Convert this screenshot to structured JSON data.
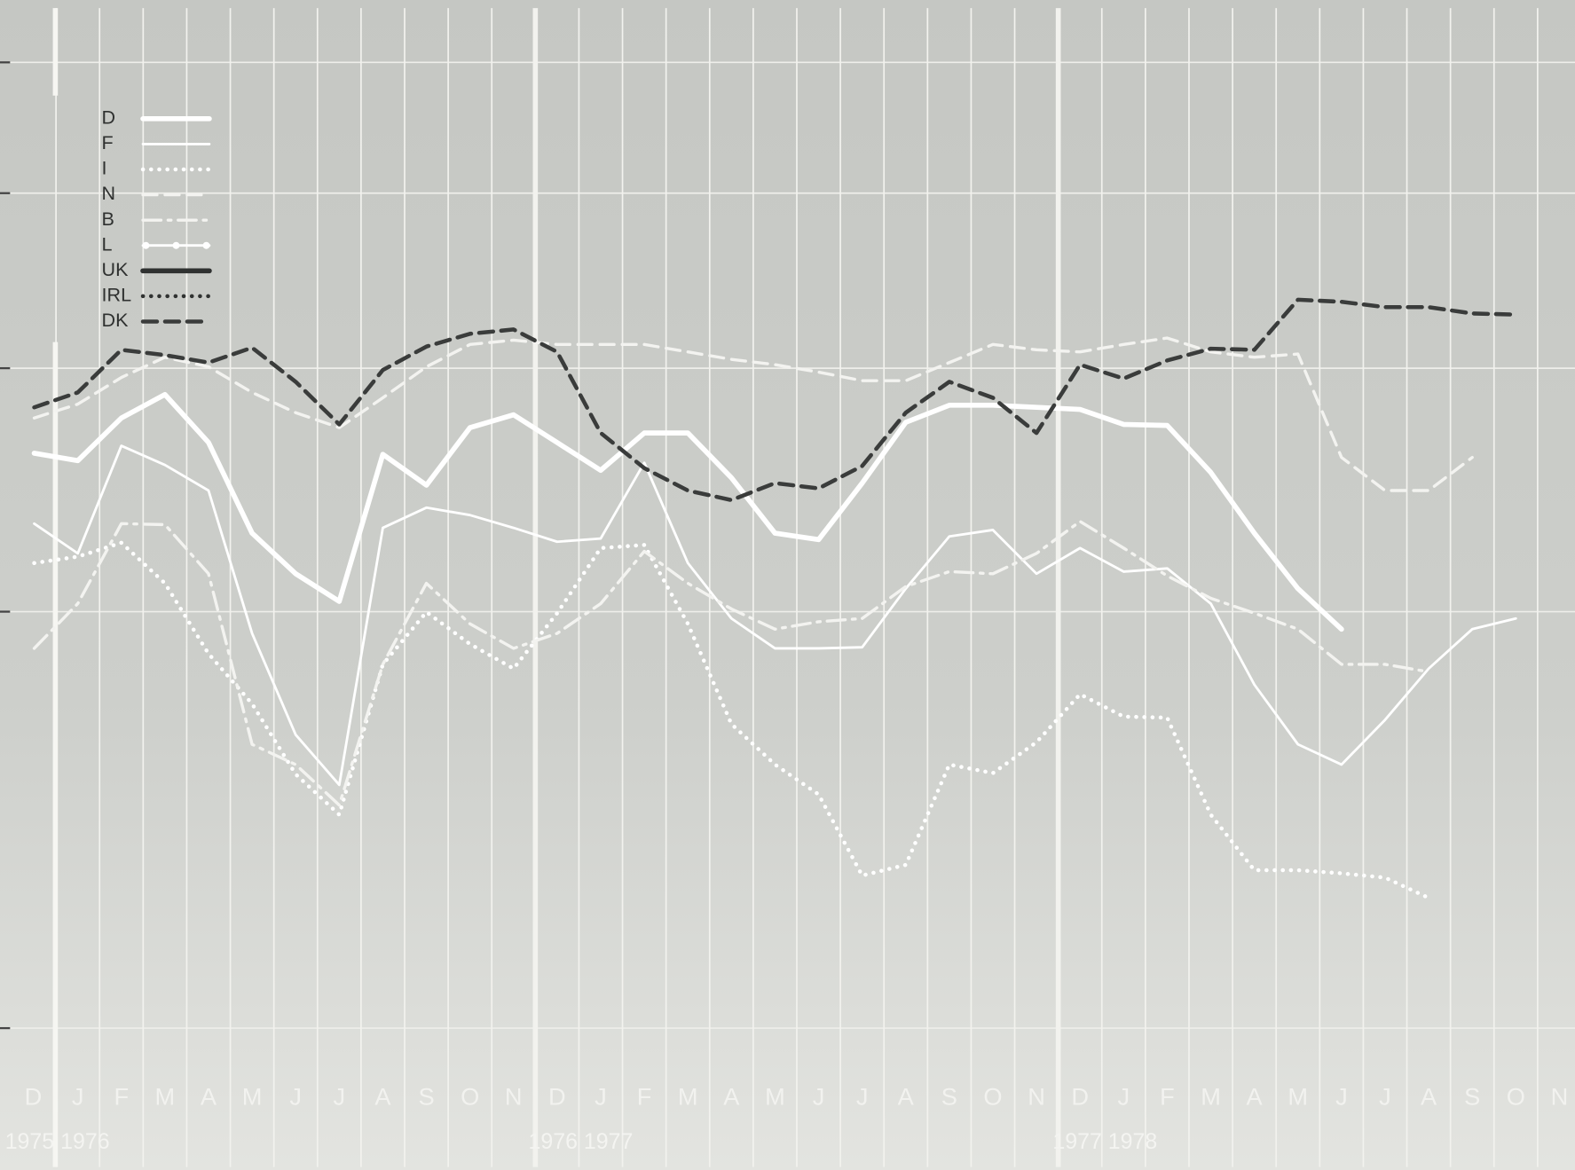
{
  "chart_data": {
    "type": "line",
    "categories": [
      "D",
      "J",
      "F",
      "M",
      "A",
      "M",
      "J",
      "J",
      "A",
      "S",
      "O",
      "N",
      "D",
      "J",
      "F",
      "M",
      "A",
      "M",
      "J",
      "J",
      "A",
      "S",
      "O",
      "N",
      "D",
      "J",
      "F",
      "M",
      "A",
      "M",
      "J",
      "J",
      "A",
      "S",
      "O",
      "N"
    ],
    "year_labels": [
      "1975 1976",
      "1976 1977",
      "1977 1978"
    ],
    "ylim": [
      0,
      100
    ],
    "series": [
      {
        "name": "D",
        "color": "#ffffff",
        "style": "solid",
        "width": 5,
        "values": [
          57.5,
          56.8,
          60.8,
          63.0,
          58.5,
          50.0,
          46.2,
          43.6,
          57.4,
          54.5,
          59.9,
          61.1,
          58.5,
          55.9,
          59.4,
          59.4,
          55.2,
          50.0,
          49.4,
          54.7,
          60.4,
          62.0,
          62.0,
          61.8,
          61.6,
          60.2,
          60.1,
          55.7,
          50.0,
          44.8,
          41.0,
          null,
          null,
          null,
          null,
          null
        ]
      },
      {
        "name": "F",
        "color": "#ffffff",
        "style": "solid",
        "width": 2.5,
        "values": [
          50.9,
          48.1,
          58.2,
          56.4,
          54.0,
          40.6,
          31.1,
          26.4,
          50.5,
          52.4,
          51.7,
          50.5,
          49.2,
          49.5,
          56.6,
          47.2,
          42.0,
          39.2,
          39.2,
          39.3,
          44.8,
          49.7,
          50.3,
          46.2,
          48.6,
          46.4,
          46.7,
          43.4,
          35.8,
          30.2,
          28.3,
          32.5,
          37.3,
          41.0,
          42.0,
          null
        ]
      },
      {
        "name": "I",
        "color": "#ffffff",
        "style": "dotted",
        "width": 4,
        "values": [
          47.2,
          47.8,
          49.1,
          45.3,
          38.7,
          34.0,
          27.4,
          23.6,
          37.7,
          42.6,
          39.6,
          37.3,
          42.5,
          48.6,
          48.9,
          41.5,
          32.1,
          28.3,
          25.5,
          17.9,
          18.9,
          28.3,
          27.5,
          30.4,
          34.9,
          32.8,
          32.7,
          23.6,
          18.4,
          18.4,
          18.1,
          17.7,
          15.8,
          null,
          null,
          null
        ]
      },
      {
        "name": "N",
        "color": "#f3f3f0",
        "style": "dashed",
        "width": 3,
        "values": [
          60.8,
          62.1,
          64.6,
          66.5,
          65.6,
          63.2,
          61.3,
          59.9,
          62.7,
          65.6,
          67.7,
          68.1,
          67.7,
          67.7,
          67.7,
          67.0,
          66.3,
          65.8,
          65.1,
          64.3,
          64.3,
          66.0,
          67.7,
          67.2,
          67.0,
          67.7,
          68.3,
          67.0,
          66.5,
          66.8,
          57.1,
          54.0,
          54.0,
          57.1,
          null,
          null
        ]
      },
      {
        "name": "B",
        "color": "#f3f3f0",
        "style": "dashdot",
        "width": 3,
        "values": [
          39.2,
          43.4,
          50.9,
          50.8,
          46.2,
          30.2,
          28.3,
          24.5,
          37.7,
          45.3,
          41.5,
          39.2,
          40.6,
          43.4,
          48.3,
          45.3,
          42.9,
          41.0,
          41.7,
          42.0,
          45.0,
          46.4,
          46.2,
          48.1,
          51.1,
          48.6,
          46.0,
          43.9,
          42.5,
          41.0,
          37.7,
          37.7,
          37.0,
          null,
          null,
          null
        ]
      },
      {
        "name": "L",
        "color": "#ffffff",
        "style": "dotline",
        "width": 2.5,
        "values": [
          null,
          null,
          null,
          null,
          null,
          null,
          null,
          null,
          null,
          null,
          null,
          null,
          null,
          null,
          null,
          null,
          null,
          null,
          null,
          null,
          null,
          null,
          null,
          null,
          null,
          null,
          null,
          null,
          null,
          null,
          null,
          null,
          null,
          null,
          null,
          null
        ]
      },
      {
        "name": "UK",
        "color": "#303231",
        "style": "solid",
        "width": 5,
        "values": [
          null,
          null,
          null,
          null,
          null,
          null,
          null,
          null,
          null,
          null,
          null,
          null,
          null,
          null,
          null,
          null,
          null,
          null,
          null,
          null,
          null,
          null,
          null,
          null,
          null,
          null,
          null,
          null,
          null,
          null,
          null,
          null,
          null,
          null,
          null,
          null
        ]
      },
      {
        "name": "IRL",
        "color": "#303231",
        "style": "dotted",
        "width": 4,
        "values": [
          null,
          null,
          null,
          null,
          null,
          null,
          null,
          null,
          null,
          null,
          null,
          null,
          null,
          null,
          null,
          null,
          null,
          null,
          null,
          null,
          null,
          null,
          null,
          null,
          null,
          null,
          null,
          null,
          null,
          null,
          null,
          null,
          null,
          null,
          null,
          null
        ]
      },
      {
        "name": "DK",
        "color": "#3a3c3b",
        "style": "dashed",
        "width": 4,
        "values": [
          61.8,
          63.2,
          67.2,
          66.7,
          66.0,
          67.4,
          64.2,
          60.2,
          65.3,
          67.5,
          68.7,
          69.1,
          67.0,
          59.4,
          56.1,
          54.0,
          53.1,
          54.7,
          54.2,
          56.3,
          61.3,
          64.2,
          62.7,
          59.4,
          65.8,
          64.5,
          66.2,
          67.3,
          67.2,
          71.9,
          71.7,
          71.2,
          71.2,
          70.6,
          70.5,
          null
        ]
      }
    ]
  }
}
